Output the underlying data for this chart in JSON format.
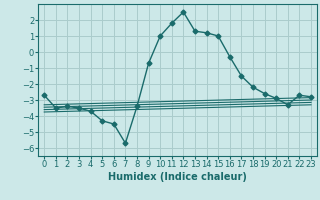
{
  "xlabel": "Humidex (Indice chaleur)",
  "ylabel": "",
  "background_color": "#cce8e8",
  "grid_color": "#aacccc",
  "line_color": "#1a6b6b",
  "main_x": [
    0,
    1,
    2,
    3,
    4,
    5,
    6,
    7,
    8,
    9,
    10,
    11,
    12,
    13,
    14,
    15,
    16,
    17,
    18,
    19,
    20,
    21,
    22,
    23
  ],
  "main_y": [
    -2.7,
    -3.5,
    -3.4,
    -3.5,
    -3.7,
    -4.3,
    -4.5,
    -5.7,
    -3.4,
    -0.7,
    1.0,
    1.8,
    2.5,
    1.3,
    1.2,
    1.0,
    -0.3,
    -1.5,
    -2.2,
    -2.6,
    -2.9,
    -3.3,
    -2.7,
    -2.8
  ],
  "reg_lines": [
    {
      "x": [
        0,
        23
      ],
      "y": [
        -3.3,
        -2.85
      ]
    },
    {
      "x": [
        0,
        23
      ],
      "y": [
        -3.45,
        -3.0
      ]
    },
    {
      "x": [
        0,
        23
      ],
      "y": [
        -3.6,
        -3.15
      ]
    },
    {
      "x": [
        0,
        23
      ],
      "y": [
        -3.75,
        -3.3
      ]
    }
  ],
  "xlim": [
    -0.5,
    23.5
  ],
  "ylim": [
    -6.5,
    3.0
  ],
  "yticks": [
    -6,
    -5,
    -4,
    -3,
    -2,
    -1,
    0,
    1,
    2
  ],
  "xticks": [
    0,
    1,
    2,
    3,
    4,
    5,
    6,
    7,
    8,
    9,
    10,
    11,
    12,
    13,
    14,
    15,
    16,
    17,
    18,
    19,
    20,
    21,
    22,
    23
  ],
  "marker": "D",
  "markersize": 2.5,
  "linewidth": 1.0,
  "xlabel_fontsize": 7,
  "tick_fontsize": 6
}
